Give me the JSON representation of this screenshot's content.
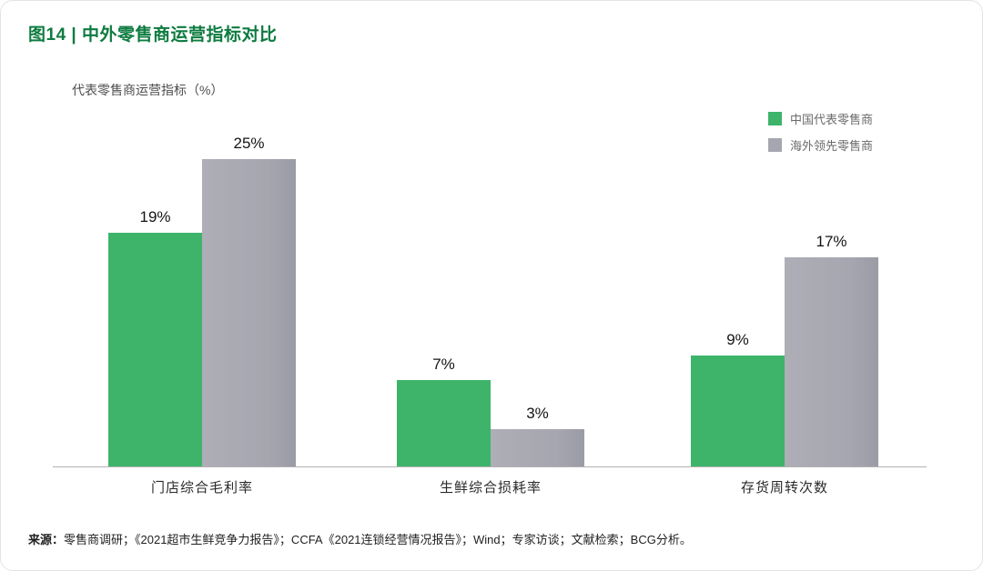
{
  "page": {
    "title": "图14 | 中外零售商运营指标对比",
    "subtitle": "代表零售商运营指标（%）",
    "source_label": "来源：",
    "source_text": "零售商调研；《2021超市生鲜竞争力报告》；CCFA《2021连锁经营情况报告》；Wind；专家访谈；文献检索；BCG分析。"
  },
  "legend": [
    {
      "label": "中国代表零售商",
      "color": "#3db46a"
    },
    {
      "label": "海外领先零售商",
      "color": "#a6a6b0"
    }
  ],
  "colors": {
    "title_green": "#0e7b40",
    "bar_green": "#3db46a",
    "bar_gray": "#a6a6b0",
    "axis": "#b3b3b3"
  },
  "chart_data": {
    "type": "bar",
    "title": "图14 | 中外零售商运营指标对比",
    "ylabel": "代表零售商运营指标（%）",
    "xlabel": "",
    "categories": [
      "门店综合毛利率",
      "生鲜综合损耗率",
      "存货周转次数"
    ],
    "series": [
      {
        "name": "中国代表零售商",
        "color": "#3db46a",
        "values": [
          19,
          7,
          9
        ]
      },
      {
        "name": "海外领先零售商",
        "color": "#a6a6b0",
        "values": [
          25,
          3,
          17
        ]
      }
    ],
    "value_suffix": "%",
    "ylim": [
      0,
      27
    ],
    "grid": false,
    "legend_position": "top-right"
  }
}
